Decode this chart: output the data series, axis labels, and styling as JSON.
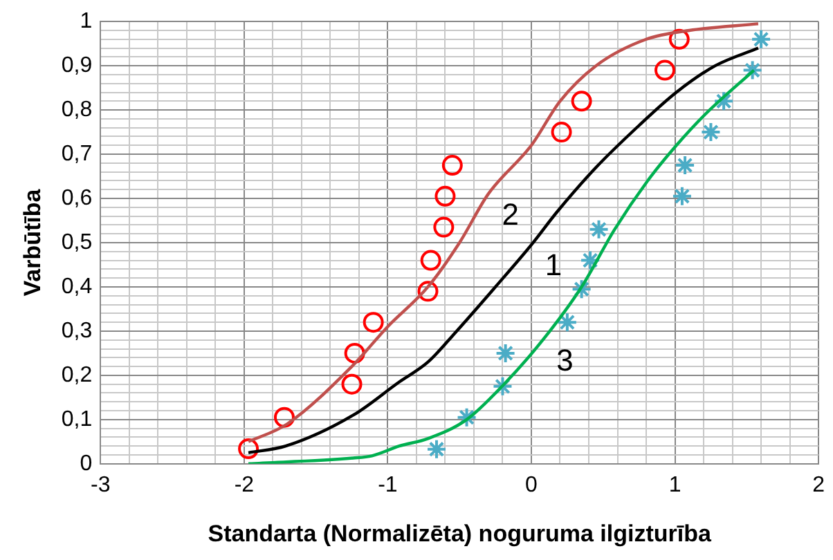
{
  "chart_data": {
    "type": "line",
    "xlabel": "Standarta (Normalizēta) noguruma ilgizturība",
    "ylabel": "Varbūtība",
    "series": [
      {
        "name": "2",
        "color": "#c0504d",
        "x": [
          -1.97,
          -1.7,
          -1.25,
          -1.0,
          -0.72,
          -0.5,
          -0.3,
          0,
          0.2,
          0.45,
          0.8,
          1.1,
          1.58
        ],
        "values": [
          0.05,
          0.09,
          0.22,
          0.31,
          0.4,
          0.5,
          0.61,
          0.72,
          0.82,
          0.9,
          0.96,
          0.98,
          0.995
        ]
      },
      {
        "name": "1",
        "color": "#000000",
        "x": [
          -1.97,
          -1.71,
          -1.24,
          -0.92,
          -0.72,
          -0.52,
          -0.25,
          0,
          0.18,
          0.45,
          0.75,
          1.01,
          1.28,
          1.58
        ],
        "values": [
          0.025,
          0.04,
          0.11,
          0.185,
          0.23,
          0.3,
          0.4,
          0.495,
          0.57,
          0.67,
          0.765,
          0.84,
          0.9,
          0.94
        ]
      },
      {
        "name": "3",
        "color": "#00b050",
        "x": [
          -1.97,
          -1.24,
          -1.11,
          -0.92,
          -0.72,
          -0.45,
          -0.19,
          0.08,
          0.35,
          0.58,
          0.81,
          1.01,
          1.21,
          1.55
        ],
        "values": [
          0,
          0.013,
          0.018,
          0.04,
          0.057,
          0.1,
          0.18,
          0.28,
          0.4,
          0.53,
          0.64,
          0.72,
          0.79,
          0.89
        ]
      },
      {
        "type": "scatter",
        "color": "#ff0000",
        "marker": "circle",
        "x": [
          -1.97,
          -1.72,
          -1.25,
          -1.23,
          -1.1,
          -0.72,
          -0.7,
          -0.61,
          -0.6,
          -0.55,
          0.21,
          0.35,
          0.93,
          1.03
        ],
        "values": [
          0.034,
          0.105,
          0.18,
          0.25,
          0.32,
          0.39,
          0.46,
          0.535,
          0.605,
          0.675,
          0.75,
          0.82,
          0.89,
          0.96
        ]
      },
      {
        "type": "scatter",
        "color": "#4bacc6",
        "marker": "cross",
        "x": [
          -0.66,
          -0.45,
          -0.2,
          -0.18,
          0.25,
          0.35,
          0.41,
          0.47,
          1.05,
          1.07,
          1.25,
          1.34,
          1.54,
          1.6
        ],
        "values": [
          0.033,
          0.105,
          0.175,
          0.25,
          0.32,
          0.395,
          0.46,
          0.53,
          0.605,
          0.675,
          0.75,
          0.82,
          0.89,
          0.96
        ]
      }
    ],
    "xlim": [
      -3,
      2
    ],
    "xticks": [
      -3,
      {
        "value": -2.8,
        "label": null
      },
      {
        "value": -2.6,
        "label": null
      },
      {
        "value": -2.4,
        "label": null
      },
      {
        "value": -2.2,
        "label": null
      },
      -2,
      {
        "value": -1.8,
        "label": null
      },
      {
        "value": -1.6,
        "label": null
      },
      {
        "value": -1.4,
        "label": null
      },
      {
        "value": -1.2,
        "label": null
      },
      -1,
      {
        "value": -0.8,
        "label": null
      },
      {
        "value": -0.6,
        "label": null
      },
      {
        "value": -0.4,
        "label": null
      },
      {
        "value": -0.2,
        "label": null
      },
      0,
      {
        "value": 0.2,
        "label": null
      },
      {
        "value": 0.4,
        "label": null
      },
      {
        "value": 0.6,
        "label": null
      },
      {
        "value": 0.8,
        "label": null
      },
      1,
      {
        "value": 1.2,
        "label": null
      },
      {
        "value": 1.4,
        "label": null
      },
      {
        "value": 1.6,
        "label": null
      },
      {
        "value": 1.8,
        "label": null
      },
      2
    ],
    "ylim": [
      0,
      1
    ],
    "yticks": [
      0,
      {
        "value": 0.02,
        "label": null
      },
      {
        "value": 0.04,
        "label": null
      },
      {
        "value": 0.06,
        "label": null
      },
      {
        "value": 0.08,
        "label": null
      },
      {
        "value": 0.1,
        "label": "0,1"
      },
      {
        "value": 0.12,
        "label": null
      },
      {
        "value": 0.14,
        "label": null
      },
      {
        "value": 0.16,
        "label": null
      },
      {
        "value": 0.18,
        "label": null
      },
      {
        "value": 0.2,
        "label": "0,2"
      },
      {
        "value": 0.22,
        "label": null
      },
      {
        "value": 0.24,
        "label": null
      },
      {
        "value": 0.26,
        "label": null
      },
      {
        "value": 0.28,
        "label": null
      },
      {
        "value": 0.3,
        "label": "0,3"
      },
      {
        "value": 0.32,
        "label": null
      },
      {
        "value": 0.34,
        "label": null
      },
      {
        "value": 0.36,
        "label": null
      },
      {
        "value": 0.38,
        "label": null
      },
      {
        "value": 0.4,
        "label": "0,4"
      },
      {
        "value": 0.42,
        "label": null
      },
      {
        "value": 0.44,
        "label": null
      },
      {
        "value": 0.46,
        "label": null
      },
      {
        "value": 0.48,
        "label": null
      },
      {
        "value": 0.5,
        "label": "0,5"
      },
      {
        "value": 0.52,
        "label": null
      },
      {
        "value": 0.54,
        "label": null
      },
      {
        "value": 0.56,
        "label": null
      },
      {
        "value": 0.58,
        "label": null
      },
      {
        "value": 0.6,
        "label": "0,6"
      },
      {
        "value": 0.62,
        "label": null
      },
      {
        "value": 0.64,
        "label": null
      },
      {
        "value": 0.66,
        "label": null
      },
      {
        "value": 0.68,
        "label": null
      },
      {
        "value": 0.7,
        "label": "0,7"
      },
      {
        "value": 0.72,
        "label": null
      },
      {
        "value": 0.74,
        "label": null
      },
      {
        "value": 0.76,
        "label": null
      },
      {
        "value": 0.78,
        "label": null
      },
      {
        "value": 0.8,
        "label": "0,8"
      },
      {
        "value": 0.82,
        "label": null
      },
      {
        "value": 0.84,
        "label": null
      },
      {
        "value": 0.86,
        "label": null
      },
      {
        "value": 0.88,
        "label": null
      },
      {
        "value": 0.9,
        "label": "0,9"
      },
      {
        "value": 0.92,
        "label": null
      },
      {
        "value": 0.94,
        "label": null
      },
      {
        "value": 0.96,
        "label": null
      },
      {
        "value": 0.98,
        "label": null
      },
      1
    ],
    "grid": true,
    "legend": false
  }
}
